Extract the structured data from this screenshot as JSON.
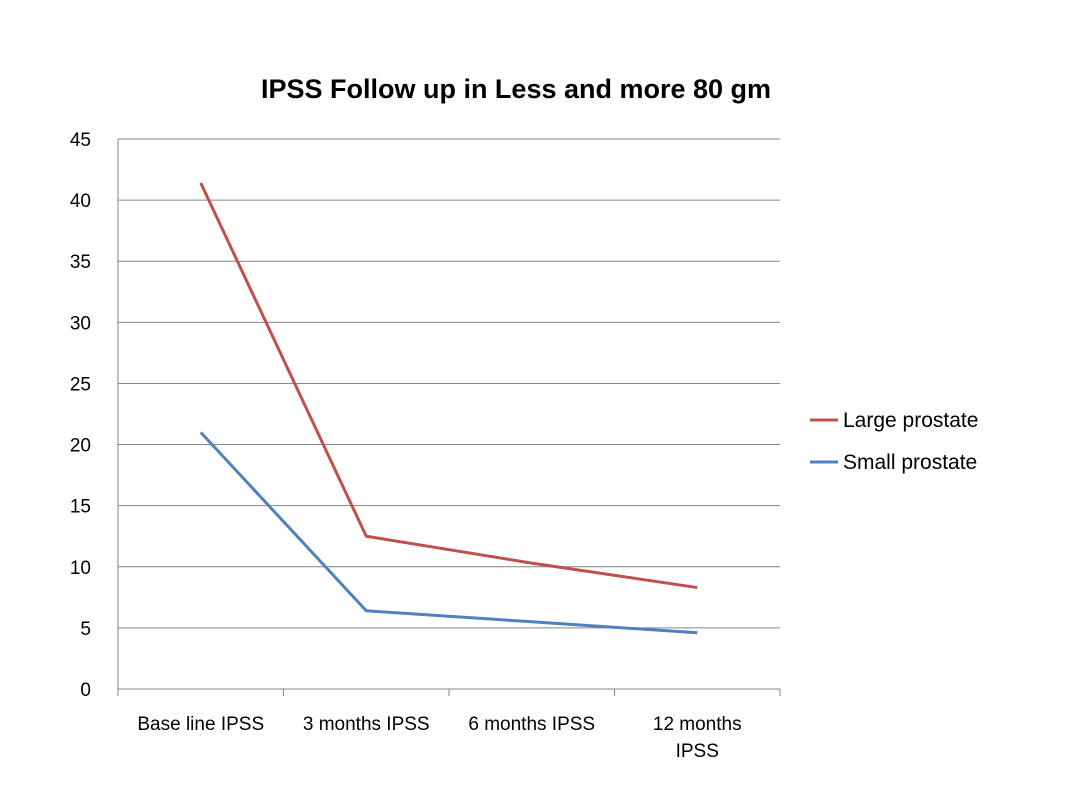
{
  "chart_data": {
    "type": "line",
    "title": "IPSS Follow up in Less and more 80 gm",
    "categories": [
      [
        "Base line IPSS"
      ],
      [
        "3 months IPSS"
      ],
      [
        "6 months  IPSS"
      ],
      [
        "12 months",
        "IPSS"
      ]
    ],
    "series": [
      {
        "name": "Large prostate",
        "color": "#c0504d",
        "values": [
          41.4,
          12.5,
          10.3,
          8.3
        ]
      },
      {
        "name": "Small prostate",
        "color": "#4f81bd",
        "values": [
          21.0,
          6.4,
          5.5,
          4.6
        ]
      }
    ],
    "ylim": [
      0,
      45
    ],
    "yticks": [
      0,
      5,
      10,
      15,
      20,
      25,
      30,
      35,
      40,
      45
    ],
    "grid": true,
    "legend": "right"
  }
}
